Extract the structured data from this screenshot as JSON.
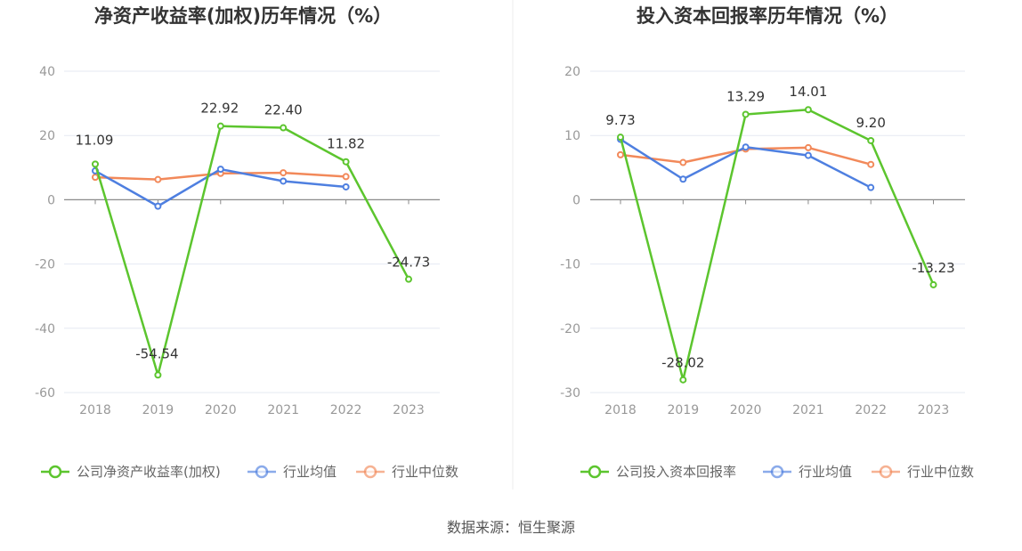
{
  "source": "数据来源：恒生聚源",
  "colors": {
    "company": "#5cc52e",
    "avg": "#4e7fe0",
    "median": "#f2895a",
    "grid": "#e5e9f2",
    "axis": "#8a8a8a"
  },
  "chart_data": [
    {
      "type": "line",
      "title": "净资产收益率(加权)历年情况（%）",
      "categories": [
        "2018",
        "2019",
        "2020",
        "2021",
        "2022",
        "2023"
      ],
      "ylim": [
        -60,
        40
      ],
      "yticks": [
        40,
        20,
        0,
        -20,
        -40,
        -60
      ],
      "grid": true,
      "legend_position": "bottom",
      "series": [
        {
          "name": "公司净资产收益率(加权)",
          "key": "company",
          "values": [
            11.09,
            -54.54,
            22.92,
            22.4,
            11.82,
            -24.73
          ],
          "labels": [
            "11.09",
            "-54.54",
            "22.92",
            "22.40",
            "11.82",
            "-24.73"
          ]
        },
        {
          "name": "行业均值",
          "key": "avg",
          "values": [
            9.0,
            -2.0,
            9.5,
            5.8,
            4.0,
            null
          ]
        },
        {
          "name": "行业中位数",
          "key": "median",
          "values": [
            7.0,
            6.3,
            8.2,
            8.4,
            7.2,
            null
          ]
        }
      ]
    },
    {
      "type": "line",
      "title": "投入资本回报率历年情况（%）",
      "categories": [
        "2018",
        "2019",
        "2020",
        "2021",
        "2022",
        "2023"
      ],
      "ylim": [
        -30,
        20
      ],
      "yticks": [
        20,
        10,
        0,
        -10,
        -20,
        -30
      ],
      "grid": true,
      "legend_position": "bottom",
      "series": [
        {
          "name": "公司投入资本回报率",
          "key": "company",
          "values": [
            9.73,
            -28.02,
            13.29,
            14.01,
            9.2,
            -13.23
          ],
          "labels": [
            "9.73",
            "-28.02",
            "13.29",
            "14.01",
            "9.20",
            "-13.23"
          ]
        },
        {
          "name": "行业均值",
          "key": "avg",
          "values": [
            9.4,
            3.2,
            8.2,
            6.9,
            1.9,
            null
          ]
        },
        {
          "name": "行业中位数",
          "key": "median",
          "values": [
            7.0,
            5.8,
            7.9,
            8.1,
            5.5,
            null
          ]
        }
      ]
    }
  ]
}
